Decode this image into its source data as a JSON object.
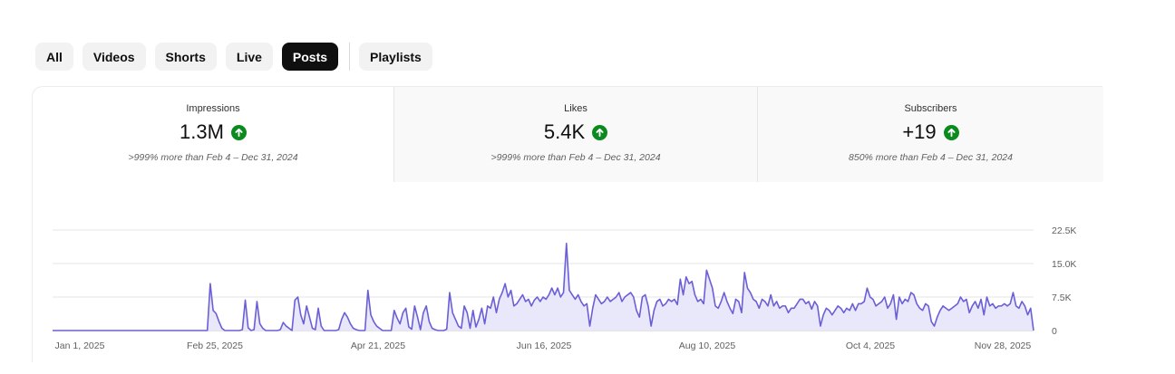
{
  "filters": {
    "chips": [
      {
        "label": "All",
        "active": false
      },
      {
        "label": "Videos",
        "active": false
      },
      {
        "label": "Shorts",
        "active": false
      },
      {
        "label": "Live",
        "active": false
      },
      {
        "label": "Posts",
        "active": true
      }
    ],
    "playlists_label": "Playlists"
  },
  "metrics": [
    {
      "label": "Impressions",
      "value": "1.3M",
      "trend_icon": "arrow-up-icon",
      "delta": ">999% more than Feb 4 – Dec 31, 2024",
      "selected": true
    },
    {
      "label": "Likes",
      "value": "5.4K",
      "trend_icon": "arrow-up-icon",
      "delta": ">999% more than Feb 4 – Dec 31, 2024",
      "selected": false
    },
    {
      "label": "Subscribers",
      "value": "+19",
      "trend_icon": "arrow-up-icon",
      "delta": "850% more than Feb 4 – Dec 31, 2024",
      "selected": false
    }
  ],
  "colors": {
    "line": "#6a5fd6",
    "fill": "#e9e7fa",
    "up_badge": "#0b8a1e",
    "active_chip": "#0f0f0f"
  },
  "chart_data": {
    "type": "area",
    "x_start": "Jan 1, 2025",
    "x_end": "Dec 1, 2025",
    "x_tick_labels": [
      "Jan 1, 2025",
      "Feb 25, 2025",
      "Apr 21, 2025",
      "Jun 16, 2025",
      "Aug 10, 2025",
      "Oct 4, 2025",
      "Nov 28, 2025"
    ],
    "y_tick_labels": [
      "0",
      "7.5K",
      "15.0K",
      "22.5K"
    ],
    "y_ticks": [
      0,
      7500,
      15000,
      22500
    ],
    "ylim": [
      0,
      22500
    ],
    "grid": true,
    "y_axis_side": "right",
    "series": [
      {
        "values": [
          0,
          0,
          0,
          0,
          0,
          0,
          0,
          0,
          0,
          0,
          0,
          0,
          0,
          0,
          0,
          0,
          0,
          0,
          0,
          0,
          0,
          0,
          0,
          0,
          0,
          0,
          0,
          0,
          0,
          0,
          0,
          0,
          0,
          0,
          0,
          0,
          0,
          0,
          0,
          0,
          0,
          0,
          0,
          0,
          0,
          0,
          0,
          0,
          0,
          0,
          0,
          0,
          0,
          0,
          10500,
          4500,
          3800,
          2000,
          500,
          0,
          0,
          0,
          0,
          0,
          0,
          200,
          6800,
          600,
          0,
          200,
          6500,
          1500,
          500,
          0,
          0,
          0,
          0,
          0,
          200,
          1800,
          1000,
          500,
          0,
          6800,
          7500,
          3500,
          1500,
          5500,
          3000,
          500,
          200,
          5000,
          1000,
          0,
          0,
          0,
          0,
          0,
          200,
          2500,
          4000,
          3000,
          1500,
          500,
          200,
          0,
          0,
          0,
          9000,
          3500,
          2000,
          1000,
          500,
          0,
          0,
          0,
          0,
          4500,
          2800,
          1500,
          4000,
          5000,
          800,
          300,
          5500,
          3000,
          200,
          4000,
          5500,
          2000,
          500,
          200,
          0,
          0,
          0,
          300,
          8500,
          4000,
          2500,
          1000,
          500,
          5500,
          4000,
          500,
          4500,
          800,
          2500,
          5000,
          1500,
          5500,
          5000,
          7500,
          4000,
          7000,
          8500,
          10500,
          7500,
          9000,
          5500,
          6000,
          7000,
          8000,
          6500,
          7000,
          5500,
          6800,
          7500,
          6500,
          7500,
          7000,
          8000,
          9500,
          8000,
          9500,
          7500,
          8500,
          19500,
          9000,
          8000,
          7000,
          8000,
          6500,
          5500,
          6000,
          1000,
          5000,
          8000,
          7000,
          6000,
          6500,
          7500,
          6500,
          7000,
          7500,
          8500,
          6500,
          7500,
          8000,
          8500,
          7500,
          4500,
          3000,
          7500,
          8000,
          5500,
          1000,
          4500,
          6500,
          7000,
          5500,
          6000,
          7000,
          6500,
          7000,
          5800,
          11500,
          8000,
          12000,
          10500,
          11000,
          8000,
          6500,
          7000,
          6000,
          13500,
          11500,
          9500,
          5500,
          5000,
          6500,
          8500,
          6500,
          5000,
          3800,
          7000,
          6500,
          4000,
          13000,
          9500,
          8500,
          7000,
          6500,
          5000,
          7000,
          6500,
          5500,
          8000,
          5500,
          6500,
          5000,
          5500,
          5500,
          4000,
          5000,
          5000,
          6000,
          7000,
          7000,
          6000,
          6500,
          4800,
          6500,
          5500,
          1000,
          3500,
          5000,
          4500,
          3500,
          4500,
          5500,
          5000,
          4000,
          5000,
          4500,
          6000,
          4500,
          6000,
          6000,
          6500,
          9500,
          7500,
          7000,
          5500,
          6000,
          6500,
          7500,
          5000,
          6000,
          8000,
          2500,
          7500,
          6000,
          7000,
          6500,
          8500,
          8000,
          6000,
          5000,
          4500,
          6000,
          5500,
          2000,
          1000,
          3000,
          4500,
          5500,
          5000,
          4500,
          5000,
          5500,
          6000,
          7500,
          6500,
          7000,
          4000,
          5500,
          6500,
          5000,
          7000,
          3500,
          7500,
          5500,
          6000,
          5000,
          5500,
          5500,
          6000,
          5500,
          6000,
          8500,
          5500,
          5000,
          6500,
          5500,
          3500,
          5000,
          0
        ]
      }
    ]
  }
}
